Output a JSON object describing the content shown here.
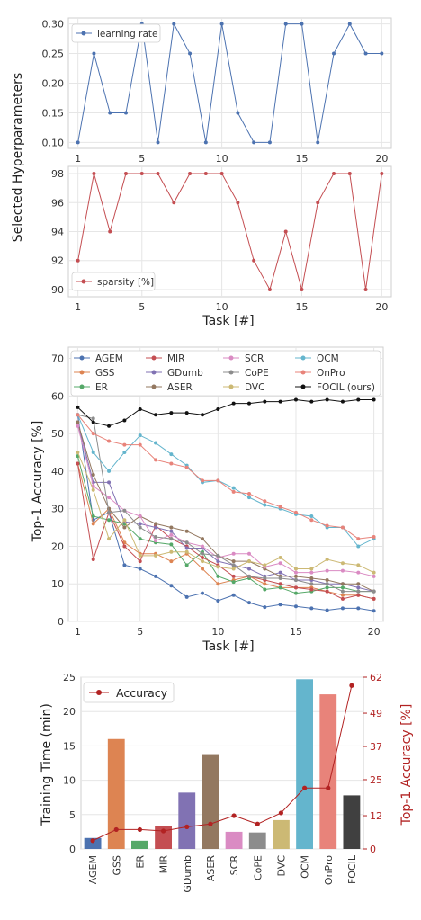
{
  "chart_data": [
    {
      "type": "line",
      "panel": "hyperparameters-top",
      "ylabel": "Selected Hyperparameters",
      "xlabel": "",
      "x": [
        1,
        2,
        3,
        4,
        5,
        6,
        7,
        8,
        9,
        10,
        11,
        12,
        13,
        14,
        15,
        16,
        17,
        18,
        19,
        20
      ],
      "xticks": [
        "1",
        "5",
        "10",
        "15",
        "20"
      ],
      "yticks": [
        "0.10",
        "0.15",
        "0.20",
        "0.25",
        "0.30"
      ],
      "ylim": [
        0.09,
        0.31
      ],
      "grid": true,
      "legend": "top-left",
      "series": [
        {
          "name": "learning rate",
          "color": "#4c72b0",
          "values": [
            0.1,
            0.25,
            0.15,
            0.15,
            0.3,
            0.1,
            0.3,
            0.25,
            0.1,
            0.3,
            0.15,
            0.1,
            0.1,
            0.3,
            0.3,
            0.1,
            0.25,
            0.3,
            0.25,
            0.25
          ]
        }
      ]
    },
    {
      "type": "line",
      "panel": "hyperparameters-bottom",
      "xlabel": "Task [#]",
      "x": [
        1,
        2,
        3,
        4,
        5,
        6,
        7,
        8,
        9,
        10,
        11,
        12,
        13,
        14,
        15,
        16,
        17,
        18,
        19,
        20
      ],
      "xticks": [
        "1",
        "5",
        "10",
        "15",
        "20"
      ],
      "yticks": [
        "90",
        "92",
        "94",
        "96",
        "98"
      ],
      "ylim": [
        89.5,
        98.5
      ],
      "grid": true,
      "legend": "bottom-left",
      "series": [
        {
          "name": "sparsity [%]",
          "color": "#c44e52",
          "values": [
            92,
            98,
            94,
            98,
            98,
            98,
            96,
            98,
            98,
            98,
            96,
            92,
            90,
            94,
            90,
            96,
            98,
            98,
            90,
            98
          ]
        }
      ]
    },
    {
      "type": "line",
      "panel": "accuracy",
      "xlabel": "Task [#]",
      "ylabel": "Top-1 Accuracy [%]",
      "x": [
        1,
        2,
        3,
        4,
        5,
        6,
        7,
        8,
        9,
        10,
        11,
        12,
        13,
        14,
        15,
        16,
        17,
        18,
        19,
        20
      ],
      "xticks": [
        "1",
        "5",
        "10",
        "15",
        "20"
      ],
      "yticks": [
        "0",
        "10",
        "20",
        "30",
        "40",
        "50",
        "60",
        "70"
      ],
      "ylim": [
        0,
        73
      ],
      "grid": true,
      "legend": "top",
      "series": [
        {
          "name": "AGEM",
          "color": "#4c72b0",
          "values": [
            55,
            27,
            29,
            15,
            14,
            12,
            9.5,
            6.5,
            7.5,
            5.5,
            7,
            5,
            3.8,
            4.5,
            4,
            3.5,
            3,
            3.5,
            3.5,
            2.8
          ]
        },
        {
          "name": "GSS",
          "color": "#dd8452",
          "values": [
            42,
            26,
            30,
            21,
            18,
            18,
            16,
            18,
            14,
            10,
            11,
            12,
            10,
            9,
            9,
            9,
            8,
            7,
            7,
            6
          ]
        },
        {
          "name": "ER",
          "color": "#55a868",
          "values": [
            44,
            28,
            27,
            26,
            22,
            21,
            20.5,
            15,
            18.5,
            12,
            10.5,
            11.5,
            8.5,
            9,
            7.5,
            8,
            9,
            9,
            8,
            8
          ]
        },
        {
          "name": "MIR",
          "color": "#c44e52",
          "values": [
            42,
            16.5,
            29,
            20,
            16,
            25.5,
            22,
            20,
            17,
            15,
            12,
            12,
            11,
            10,
            9,
            8.5,
            8,
            6,
            7,
            6
          ]
        },
        {
          "name": "GDumb",
          "color": "#8172b3",
          "values": [
            53,
            37,
            37,
            26.5,
            26,
            25,
            24,
            19.5,
            19.5,
            16,
            15,
            14,
            12,
            13,
            11,
            11,
            10,
            10,
            9,
            8
          ]
        },
        {
          "name": "ASER",
          "color": "#937860",
          "values": [
            53,
            39,
            30,
            25,
            28,
            26,
            25,
            24,
            22,
            17.5,
            16,
            16,
            14,
            12,
            12,
            11.5,
            11,
            10,
            10,
            8
          ]
        },
        {
          "name": "SCR",
          "color": "#da8bc3",
          "values": [
            52,
            36,
            33,
            29.5,
            28,
            21.5,
            23,
            21,
            20,
            17,
            18,
            18,
            14.5,
            15.5,
            13,
            13,
            13.5,
            13.5,
            13,
            12
          ]
        },
        {
          "name": "CoPE",
          "color": "#8c8c8c",
          "values": [
            55,
            54,
            29,
            29.5,
            25,
            22.5,
            22,
            21,
            18,
            17.5,
            15,
            12,
            11.5,
            11.5,
            11,
            10,
            10,
            8,
            8,
            8
          ]
        },
        {
          "name": "DVC",
          "color": "#ccb974",
          "values": [
            45,
            35,
            22,
            27,
            17.5,
            17.5,
            18.5,
            18.5,
            16,
            14.5,
            14,
            16,
            15,
            17,
            14,
            14,
            16.5,
            15.5,
            15,
            13
          ]
        },
        {
          "name": "OCM",
          "color": "#64b5cd",
          "values": [
            55,
            45,
            40,
            45,
            49.5,
            47.5,
            44.5,
            41.5,
            37,
            37.5,
            35.5,
            33,
            31,
            30,
            28.5,
            28,
            25,
            25,
            20,
            22
          ]
        },
        {
          "name": "OnPro",
          "color": "#e8837a",
          "values": [
            55,
            50,
            48,
            47,
            47,
            43,
            42,
            41,
            37.5,
            37.5,
            34.5,
            34,
            32,
            30.5,
            29,
            27,
            25.5,
            25,
            22,
            22.5
          ]
        },
        {
          "name": "FOCIL (ours)",
          "color": "#111111",
          "values": [
            57,
            53,
            52,
            53.5,
            56.5,
            55,
            55.5,
            55.5,
            55,
            56.5,
            58,
            58,
            58.5,
            58.5,
            59,
            58.5,
            59,
            58.5,
            59,
            59
          ]
        }
      ]
    },
    {
      "type": "bar",
      "panel": "training-time",
      "categories": [
        "AGEM",
        "GSS",
        "ER",
        "MIR",
        "GDumb",
        "ASER",
        "SCR",
        "CoPE",
        "DVC",
        "OCM",
        "OnPro",
        "FOCIL"
      ],
      "values": [
        1.6,
        16,
        1.2,
        3.4,
        8.2,
        13.8,
        2.5,
        2.4,
        4.2,
        24.7,
        22.5,
        7.8
      ],
      "colors": [
        "#4c72b0",
        "#dd8452",
        "#55a868",
        "#c44e52",
        "#8172b3",
        "#937860",
        "#da8bc3",
        "#8c8c8c",
        "#ccb974",
        "#64b5cd",
        "#e8837a",
        "#404040"
      ],
      "ylabel": "Training Time (min)",
      "yticks": [
        "0",
        "5",
        "10",
        "15",
        "20",
        "25"
      ],
      "ylim": [
        0,
        25
      ],
      "y2label": "Top-1 Accuracy [%]",
      "y2ticks": [
        "0",
        "12",
        "25",
        "37",
        "49",
        "62"
      ],
      "y2lim": [
        0,
        62
      ],
      "y2color": "#b22222",
      "legend": "top-left",
      "line_series": {
        "name": "Accuracy",
        "color": "#b22222",
        "values": [
          3,
          7,
          7,
          6.5,
          8,
          9,
          12,
          9,
          13,
          22,
          22,
          59
        ]
      }
    }
  ]
}
